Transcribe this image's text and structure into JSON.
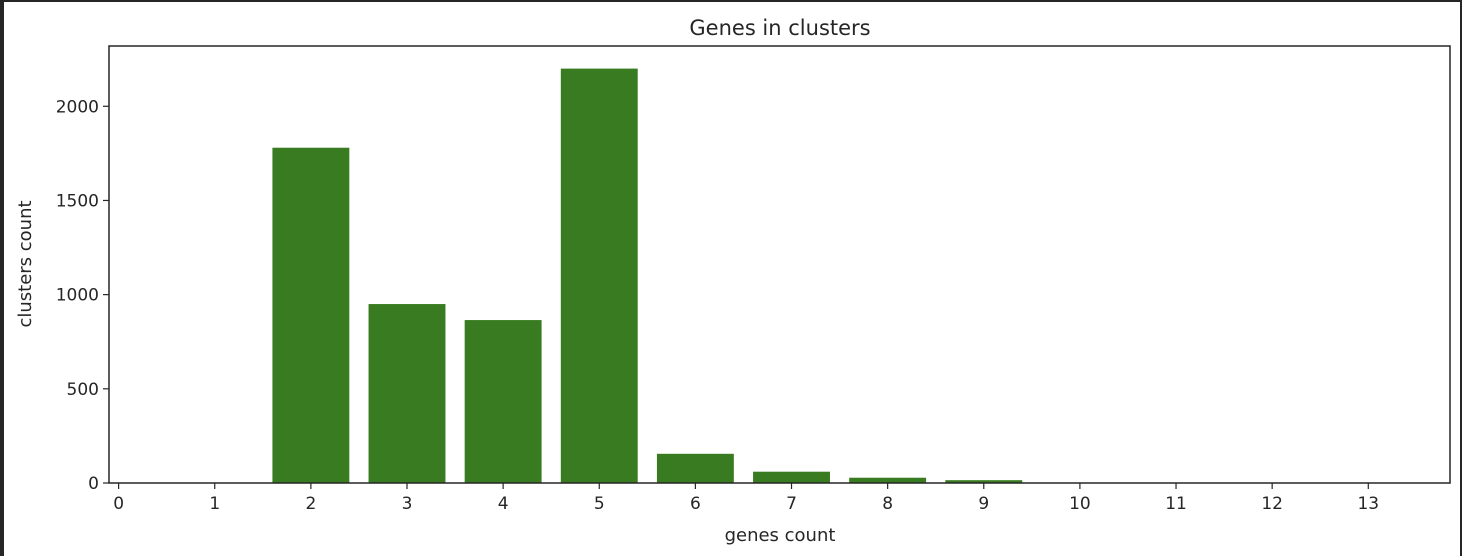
{
  "chart_data": {
    "type": "bar",
    "title": "Genes in clusters",
    "xlabel": "genes count",
    "ylabel": "clusters count",
    "bar_color": "#387b20",
    "categories": [
      1,
      2,
      3,
      4,
      5,
      6,
      7,
      8,
      9,
      10,
      11,
      12,
      13
    ],
    "values": [
      0,
      1780,
      950,
      865,
      2200,
      155,
      60,
      28,
      15,
      2,
      1,
      1,
      0
    ],
    "xlim": [
      -0.1,
      13.85
    ],
    "ylim": [
      0,
      2320
    ],
    "xticks": [
      "0",
      "1",
      "2",
      "3",
      "4",
      "5",
      "6",
      "7",
      "8",
      "9",
      "10",
      "11",
      "12",
      "13"
    ],
    "yticks": [
      "0",
      "500",
      "1000",
      "1500",
      "2000"
    ],
    "grid": false,
    "legend": "none"
  }
}
